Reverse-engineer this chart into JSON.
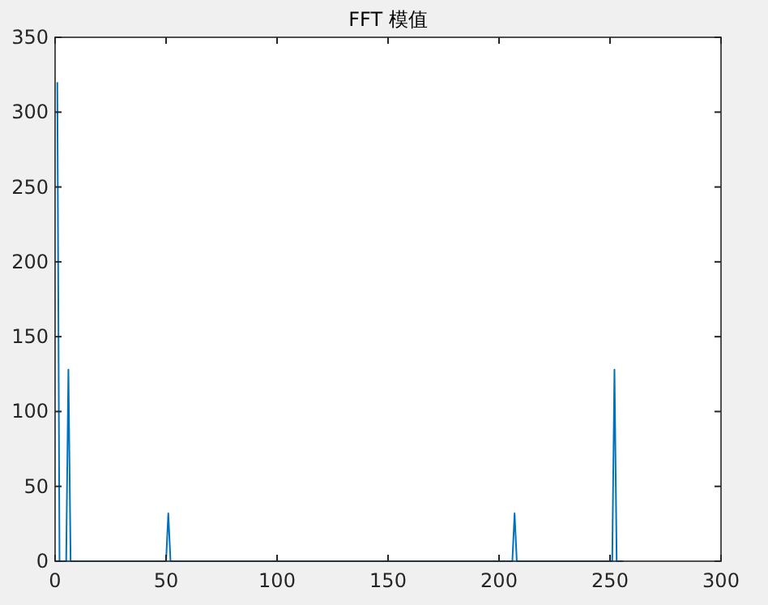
{
  "chart_data": {
    "type": "line",
    "title": "FFT 模值",
    "xlim": [
      0,
      300
    ],
    "xticks": [
      0,
      50,
      100,
      150,
      200,
      250,
      300
    ],
    "ylim": [
      0,
      350
    ],
    "yticks": [
      0,
      50,
      100,
      150,
      200,
      250,
      300,
      350
    ],
    "grid": false,
    "marker": "none",
    "line_style": "solid",
    "series": [
      {
        "color": "#0072bd",
        "x": [
          1,
          2,
          5,
          6,
          7,
          50,
          51,
          52,
          206,
          207,
          208,
          251,
          252,
          253,
          256
        ],
        "values": [
          320,
          0,
          0,
          128,
          0,
          0,
          32,
          0,
          0,
          32,
          0,
          0,
          128,
          0,
          0
        ]
      }
    ]
  }
}
